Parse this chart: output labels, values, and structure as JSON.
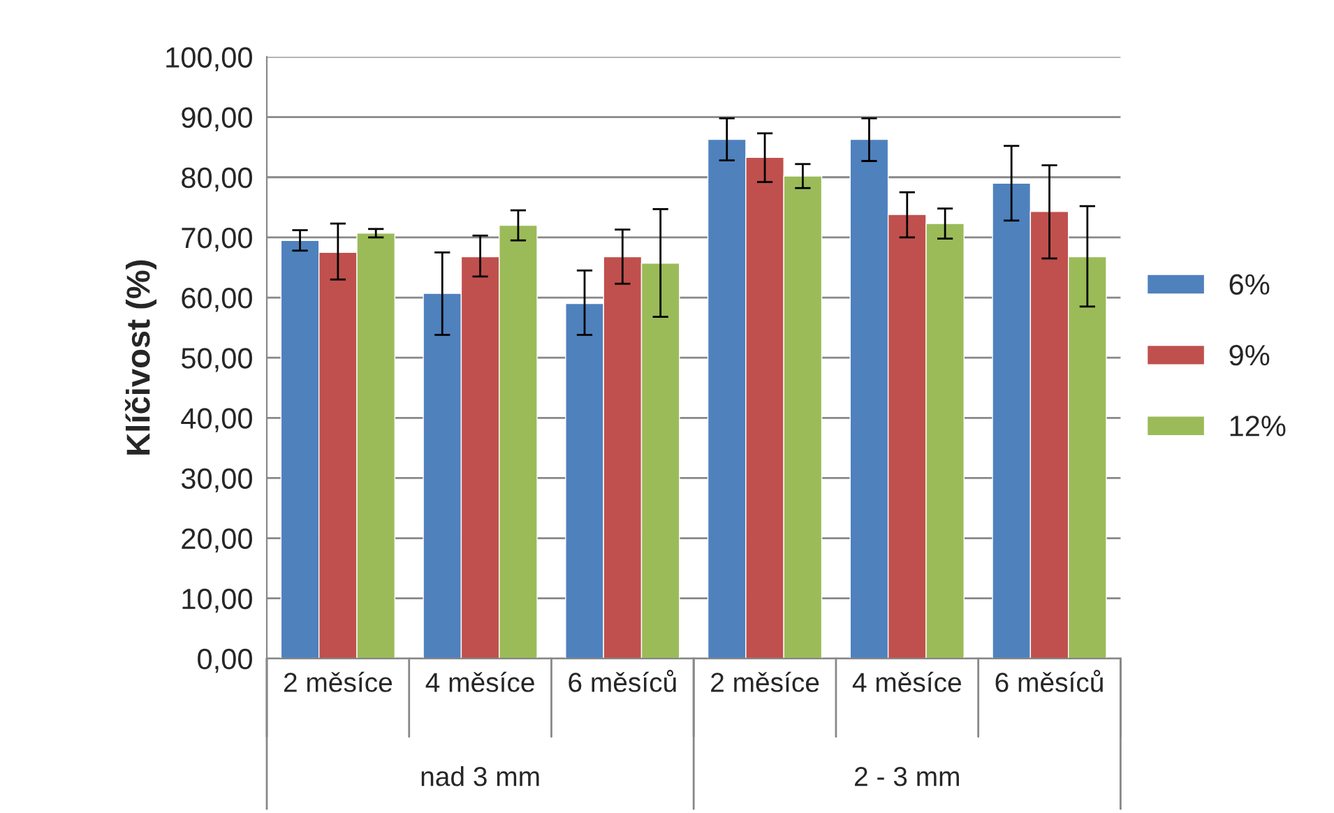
{
  "chart_data": {
    "type": "bar",
    "ylabel": "Klíčivost (%)",
    "categories": [
      "2 měsíce",
      "4 měsíce",
      "6 měsíců",
      "2 měsíce",
      "4 měsíce",
      "6 měsíců"
    ],
    "annotations": [
      "nad 3 mm",
      "2 - 3 mm"
    ],
    "series": [
      {
        "name": "6%",
        "color": "#4f81bd",
        "values": [
          69.5,
          60.7,
          59.0,
          86.3,
          86.3,
          79.0
        ],
        "errors": [
          [
            67.8,
            71.2
          ],
          [
            53.8,
            67.5
          ],
          [
            53.8,
            64.5
          ],
          [
            82.8,
            89.8
          ],
          [
            82.7,
            89.8
          ],
          [
            72.8,
            85.2
          ]
        ]
      },
      {
        "name": "9%",
        "color": "#c0504d",
        "values": [
          67.5,
          66.8,
          66.8,
          83.3,
          73.8,
          74.3
        ],
        "errors": [
          [
            63.0,
            72.3
          ],
          [
            63.5,
            70.3
          ],
          [
            62.3,
            71.3
          ],
          [
            79.2,
            87.3
          ],
          [
            70.0,
            77.5
          ],
          [
            66.5,
            82.0
          ]
        ]
      },
      {
        "name": "12%",
        "color": "#9bbb59",
        "values": [
          70.7,
          72.0,
          65.7,
          80.2,
          72.3,
          66.8
        ],
        "errors": [
          [
            70.0,
            71.4
          ],
          [
            69.5,
            74.5
          ],
          [
            56.8,
            74.7
          ],
          [
            78.2,
            82.2
          ],
          [
            69.8,
            74.8
          ],
          [
            58.5,
            75.2
          ]
        ]
      }
    ],
    "ylim": [
      0,
      100
    ],
    "yticks": [
      {
        "value": 0,
        "label": "0,00"
      },
      {
        "value": 10,
        "label": "10,00"
      },
      {
        "value": 20,
        "label": "20,00"
      },
      {
        "value": 30,
        "label": "30,00"
      },
      {
        "value": 40,
        "label": "40,00"
      },
      {
        "value": 50,
        "label": "50,00"
      },
      {
        "value": 60,
        "label": "60,00"
      },
      {
        "value": 70,
        "label": "70,00"
      },
      {
        "value": 80,
        "label": "80,00"
      },
      {
        "value": 90,
        "label": "90,00"
      },
      {
        "value": 100,
        "label": "100,00"
      }
    ],
    "grid": "y",
    "legend": "right"
  }
}
